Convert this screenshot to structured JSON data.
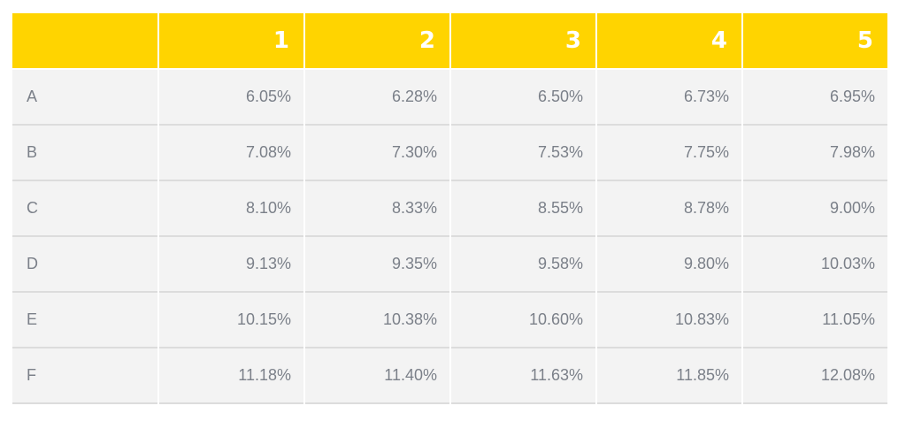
{
  "chart_data": {
    "type": "table",
    "columns": [
      "",
      "1",
      "2",
      "3",
      "4",
      "5"
    ],
    "rows": [
      {
        "label": "A",
        "values": [
          "6.05%",
          "6.28%",
          "6.50%",
          "6.73%",
          "6.95%"
        ]
      },
      {
        "label": "B",
        "values": [
          "7.08%",
          "7.30%",
          "7.53%",
          "7.75%",
          "7.98%"
        ]
      },
      {
        "label": "C",
        "values": [
          "8.10%",
          "8.33%",
          "8.55%",
          "8.78%",
          "9.00%"
        ]
      },
      {
        "label": "D",
        "values": [
          "9.13%",
          "9.35%",
          "9.58%",
          "9.80%",
          "10.03%"
        ]
      },
      {
        "label": "E",
        "values": [
          "10.15%",
          "10.38%",
          "10.60%",
          "10.83%",
          "11.05%"
        ]
      },
      {
        "label": "F",
        "values": [
          "11.18%",
          "11.40%",
          "11.63%",
          "11.85%",
          "12.08%"
        ]
      }
    ],
    "colors": {
      "header_bg": "#ffd400",
      "header_text": "#ffffff",
      "cell_bg": "#f3f3f3",
      "cell_text": "#7b8089",
      "divider": "#dcdcdc"
    }
  }
}
